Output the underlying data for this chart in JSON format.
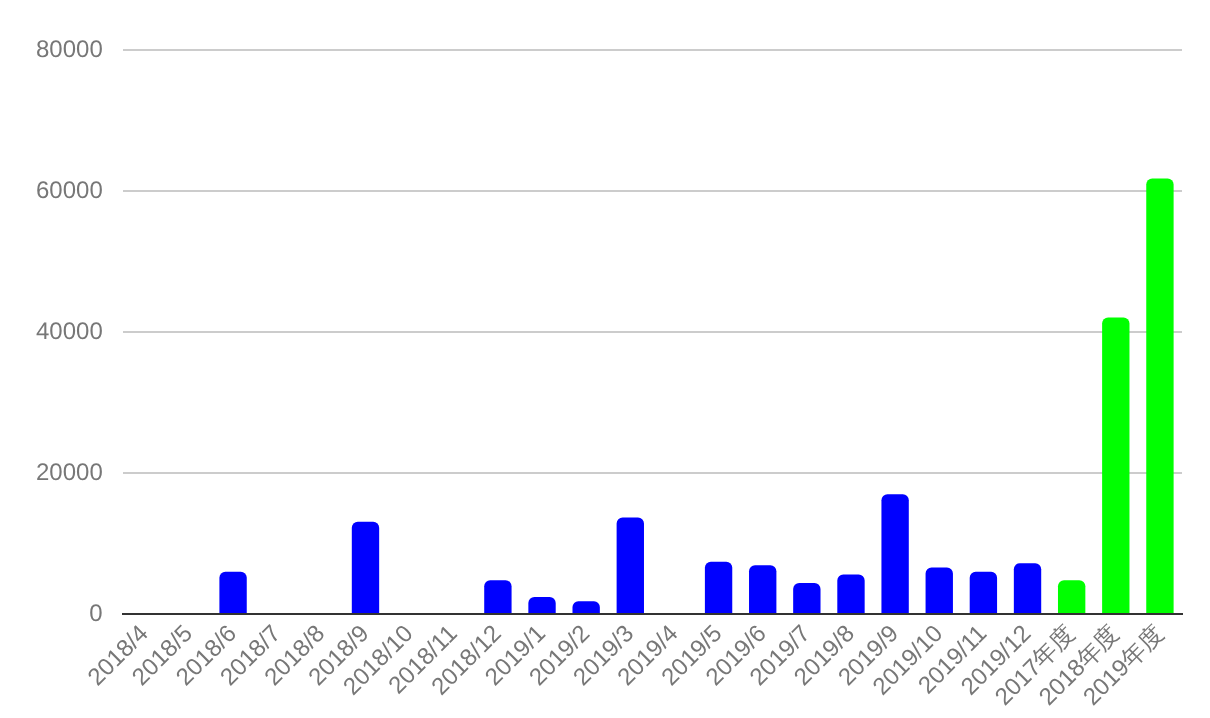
{
  "chart_data": {
    "type": "bar",
    "categories": [
      "2018/4",
      "2018/5",
      "2018/6",
      "2018/7",
      "2018/8",
      "2018/9",
      "2018/10",
      "2018/11",
      "2018/12",
      "2019/1",
      "2019/2",
      "2019/3",
      "2019/4",
      "2019/5",
      "2019/6",
      "2019/7",
      "2019/8",
      "2019/9",
      "2019/10",
      "2019/11",
      "2019/12",
      "2017年度",
      "2018年度",
      "2019年度"
    ],
    "values": [
      0,
      0,
      6000,
      0,
      0,
      13100,
      0,
      0,
      4800,
      2400,
      1800,
      13700,
      0,
      7400,
      6900,
      4400,
      5600,
      17000,
      6600,
      6000,
      7200,
      4800,
      42100,
      61800
    ],
    "colors": [
      "#0000ff",
      "#0000ff",
      "#0000ff",
      "#0000ff",
      "#0000ff",
      "#0000ff",
      "#0000ff",
      "#0000ff",
      "#0000ff",
      "#0000ff",
      "#0000ff",
      "#0000ff",
      "#0000ff",
      "#0000ff",
      "#0000ff",
      "#0000ff",
      "#0000ff",
      "#0000ff",
      "#0000ff",
      "#0000ff",
      "#0000ff",
      "#00ff00",
      "#00ff00",
      "#00ff00"
    ],
    "ylim": [
      0,
      80000
    ],
    "yticks": [
      0,
      20000,
      40000,
      60000,
      80000
    ],
    "grid": "y"
  }
}
